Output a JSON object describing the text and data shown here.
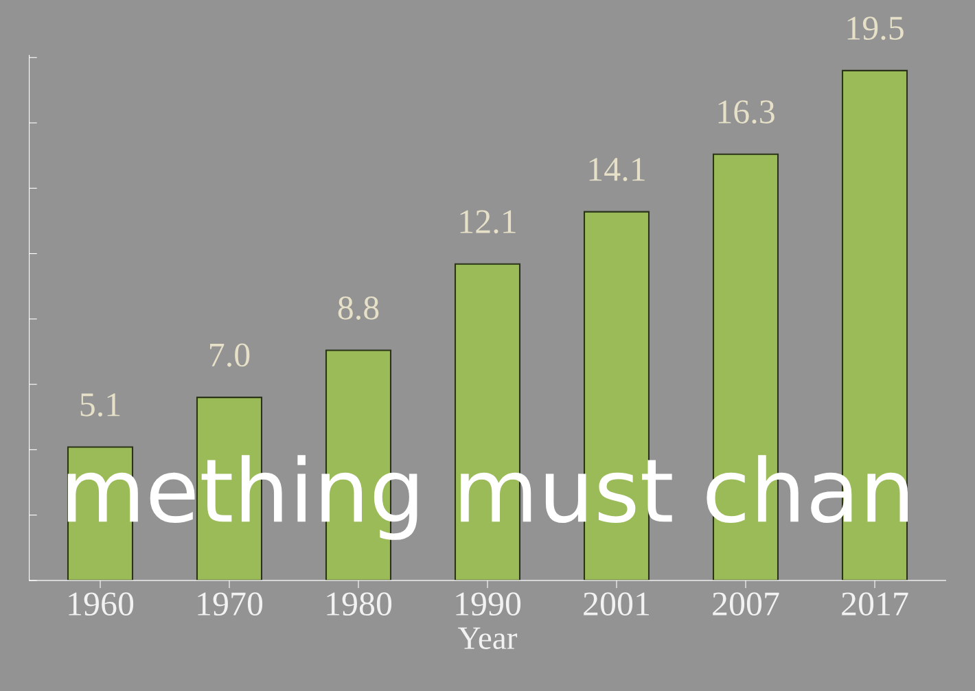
{
  "chart_data": {
    "type": "bar",
    "xlabel": "Year",
    "categories": [
      "1960",
      "1970",
      "1980",
      "1990",
      "2001",
      "2007",
      "2017"
    ],
    "values": [
      5.1,
      7.0,
      8.8,
      12.1,
      14.1,
      16.3,
      19.5
    ],
    "value_labels": [
      "5.1",
      "7.0",
      "8.8",
      "12.1",
      "14.1",
      "16.3",
      "19.5"
    ],
    "color": "#9bbb59",
    "tick_labels": "x",
    "grid": false,
    "legend": false,
    "annotations": [
      "mething must chan"
    ]
  }
}
